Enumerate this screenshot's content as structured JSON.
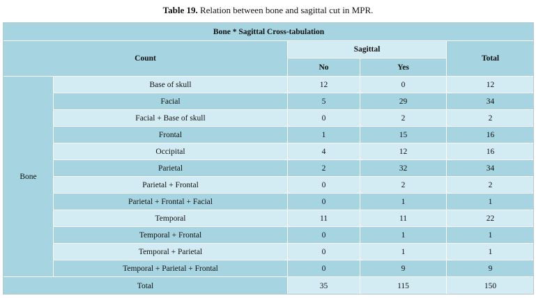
{
  "caption": {
    "label": "Table 19.",
    "text": "Relation between bone and sagittal cut in MPR."
  },
  "table": {
    "title": "Bone * Sagittal Cross-tabulation",
    "count_label": "Count",
    "group_header": "Sagittal",
    "col_no": "No",
    "col_yes": "Yes",
    "col_total": "Total",
    "row_group": "Bone",
    "rows": [
      {
        "label": "Base of skull",
        "no": "12",
        "yes": "0",
        "total": "12"
      },
      {
        "label": "Facial",
        "no": "5",
        "yes": "29",
        "total": "34"
      },
      {
        "label": "Facial + Base of skull",
        "no": "0",
        "yes": "2",
        "total": "2"
      },
      {
        "label": "Frontal",
        "no": "1",
        "yes": "15",
        "total": "16"
      },
      {
        "label": "Occipital",
        "no": "4",
        "yes": "12",
        "total": "16"
      },
      {
        "label": "Parietal",
        "no": "2",
        "yes": "32",
        "total": "34"
      },
      {
        "label": "Parietal + Frontal",
        "no": "0",
        "yes": "2",
        "total": "2"
      },
      {
        "label": "Parietal + Frontal + Facial",
        "no": "0",
        "yes": "1",
        "total": "1"
      },
      {
        "label": "Temporal",
        "no": "11",
        "yes": "11",
        "total": "22"
      },
      {
        "label": "Temporal + Frontal",
        "no": "0",
        "yes": "1",
        "total": "1"
      },
      {
        "label": "Temporal + Parietal",
        "no": "0",
        "yes": "1",
        "total": "1"
      },
      {
        "label": "Temporal + Parietal + Frontal",
        "no": "0",
        "yes": "9",
        "total": "9"
      }
    ],
    "total_row": {
      "label": "Total",
      "no": "35",
      "yes": "115",
      "total": "150"
    }
  }
}
